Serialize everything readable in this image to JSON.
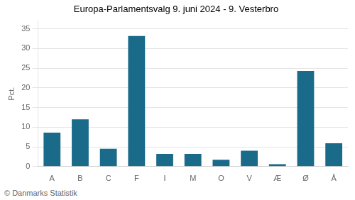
{
  "chart_data": {
    "type": "bar",
    "title": "Europa-Parlamentsvalg 9. juni 2024 - 9. Vesterbro",
    "categories": [
      "A",
      "B",
      "C",
      "F",
      "I",
      "M",
      "O",
      "V",
      "Æ",
      "Ø",
      "Å"
    ],
    "values": [
      8.6,
      12.0,
      4.5,
      33.2,
      3.2,
      3.2,
      1.7,
      4.0,
      0.6,
      24.3,
      5.9
    ],
    "color": "#1a6b8a",
    "ylabel": "Pct.",
    "ylim": [
      0,
      37
    ],
    "yticks": [
      0,
      5,
      10,
      15,
      20,
      25,
      30,
      35
    ],
    "grid": true,
    "footer": "© Danmarks Statistik"
  }
}
